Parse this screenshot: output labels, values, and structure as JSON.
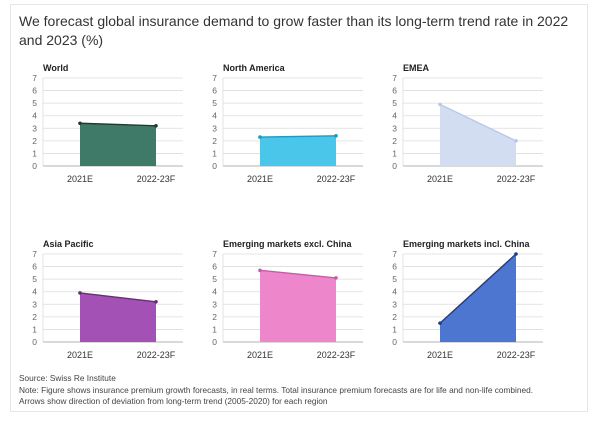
{
  "title": "We forecast global insurance demand to grow faster than its long-term trend rate in 2022 and 2023 (%)",
  "source": "Source: Swiss Re Institute",
  "note": "Note: Figure shows insurance premium growth forecasts, in real terms. Total insurance premium forecasts are for life and non-life combined.",
  "note2": "Arrows show direction of deviation from long-term trend (2005-2020) for each region",
  "chart_data": [
    {
      "type": "area",
      "title": "World",
      "categories": [
        "2021E",
        "2022-23F"
      ],
      "values": [
        3.4,
        3.2
      ],
      "ylim": [
        0,
        7
      ],
      "yticks": [
        0,
        1,
        2,
        3,
        4,
        5,
        6,
        7
      ],
      "grid": true,
      "color": "#3f7a68",
      "edge": "#1d3b33"
    },
    {
      "type": "area",
      "title": "North America",
      "categories": [
        "2021E",
        "2022-23F"
      ],
      "values": [
        2.3,
        2.4
      ],
      "ylim": [
        0,
        7
      ],
      "yticks": [
        0,
        1,
        2,
        3,
        4,
        5,
        6,
        7
      ],
      "grid": true,
      "color": "#49c6ea",
      "edge": "#1a9cc2"
    },
    {
      "type": "area",
      "title": "EMEA",
      "categories": [
        "2021E",
        "2022-23F"
      ],
      "values": [
        4.9,
        2.0
      ],
      "ylim": [
        0,
        7
      ],
      "yticks": [
        0,
        1,
        2,
        3,
        4,
        5,
        6,
        7
      ],
      "grid": true,
      "color": "#d3ddf2",
      "edge": "#b9c8e8"
    },
    {
      "type": "area",
      "title": "Asia Pacific",
      "categories": [
        "2021E",
        "2022-23F"
      ],
      "values": [
        3.9,
        3.2
      ],
      "ylim": [
        0,
        7
      ],
      "yticks": [
        0,
        1,
        2,
        3,
        4,
        5,
        6,
        7
      ],
      "grid": true,
      "color": "#a451b5",
      "edge": "#6c2a7e"
    },
    {
      "type": "area",
      "title": "Emerging markets excl. China",
      "categories": [
        "2021E",
        "2022-23F"
      ],
      "values": [
        5.7,
        5.1
      ],
      "ylim": [
        0,
        7
      ],
      "yticks": [
        0,
        1,
        2,
        3,
        4,
        5,
        6,
        7
      ],
      "grid": true,
      "color": "#ee86cc",
      "edge": "#c95aa9"
    },
    {
      "type": "area",
      "title": "Emerging markets incl. China",
      "categories": [
        "2021E",
        "2022-23F"
      ],
      "values": [
        1.5,
        7.0
      ],
      "ylim": [
        0,
        7
      ],
      "yticks": [
        0,
        1,
        2,
        3,
        4,
        5,
        6,
        7
      ],
      "grid": true,
      "color": "#4c76cf",
      "edge": "#1e3d8a"
    }
  ]
}
